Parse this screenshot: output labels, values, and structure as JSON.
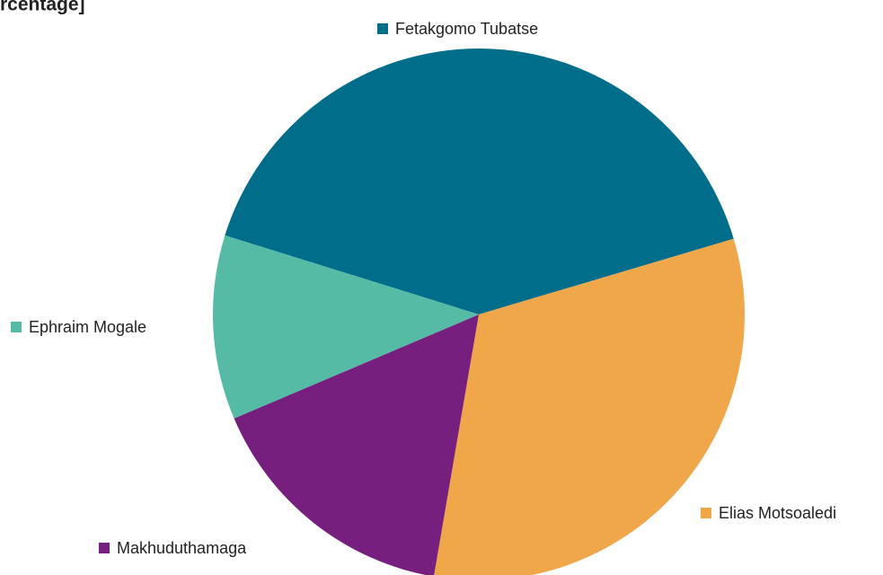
{
  "chart_data": {
    "type": "pie",
    "title": "rcentage]",
    "categories": [
      "Fetakgomo Tubatse",
      "Elias Motsoaledi",
      "Makhuduthamaga",
      "Ephraim Mogale"
    ],
    "values": [
      40.6,
      32.3,
      15.9,
      11.2
    ],
    "colors": [
      "#006e8a",
      "#f0a74a",
      "#761f7e",
      "#55bba5"
    ]
  }
}
